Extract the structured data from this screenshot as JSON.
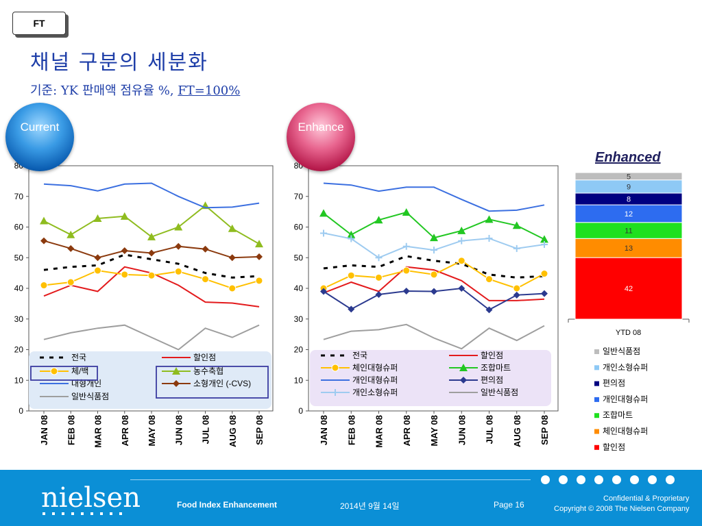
{
  "badge": "FT",
  "title": "채널 구분의 세분화",
  "subtitle_prefix": "기준: YK 판매액 점유율 %, ",
  "subtitle_suffix": "FT=100%",
  "bubble_current": "Current",
  "bubble_enhance": "Enhance",
  "chart_data": [
    {
      "type": "line",
      "name": "Current",
      "categories": [
        "JAN 08",
        "FEB 08",
        "MAR 08",
        "APR 08",
        "MAY 08",
        "JUN 08",
        "JUL 08",
        "AUG 08",
        "SEP 08"
      ],
      "ylim": [
        0,
        80
      ],
      "yticks": [
        0,
        10,
        20,
        30,
        40,
        50,
        60,
        70,
        80
      ],
      "grid": false,
      "series": [
        {
          "name": "전국",
          "color": "#000000",
          "style": "dashed",
          "marker": "none",
          "values": [
            46,
            47,
            47.5,
            51,
            49.5,
            48,
            45,
            43.5,
            44
          ]
        },
        {
          "name": "할인점",
          "color": "#e31a1c",
          "style": "solid",
          "marker": "none",
          "values": [
            37.5,
            41,
            39,
            47,
            45,
            41,
            35.5,
            35.2,
            34
          ]
        },
        {
          "name": "체/백",
          "color": "#ffc000",
          "style": "solid",
          "marker": "circle",
          "values": [
            41,
            42,
            45.8,
            44.5,
            44.2,
            45.5,
            43,
            40,
            42.5
          ]
        },
        {
          "name": "농수축협",
          "color": "#8fbc1f",
          "style": "solid",
          "marker": "triangle",
          "values": [
            62,
            57.5,
            62.8,
            63.5,
            56.8,
            60,
            67,
            59.5,
            54.5
          ]
        },
        {
          "name": "대형개인",
          "color": "#3b6fe0",
          "style": "solid",
          "marker": "none",
          "values": [
            74,
            73.5,
            71.8,
            74,
            74.3,
            70,
            66.3,
            66.5,
            67.8
          ]
        },
        {
          "name": "소형개인 (-CVS)",
          "color": "#8b3a0e",
          "style": "solid",
          "marker": "diamond",
          "values": [
            55.5,
            53,
            50,
            52.3,
            51.5,
            53.7,
            52.8,
            50,
            50.3
          ]
        },
        {
          "name": "일반식품점",
          "color": "#9e9e9e",
          "style": "solid",
          "marker": "none",
          "values": [
            23.3,
            25.5,
            27,
            28,
            24,
            20,
            27,
            24,
            28
          ]
        }
      ]
    },
    {
      "type": "line",
      "name": "Enhance",
      "categories": [
        "JAN 08",
        "FEB 08",
        "MAR 08",
        "APR 08",
        "MAY 08",
        "JUN 08",
        "JUL 08",
        "AUG 08",
        "SEP 08"
      ],
      "ylim": [
        0,
        80
      ],
      "yticks": [
        0,
        10,
        20,
        30,
        40,
        50,
        60,
        70,
        80
      ],
      "grid": false,
      "series": [
        {
          "name": "전국",
          "color": "#000000",
          "style": "dashed",
          "marker": "none",
          "values": [
            46.5,
            47.5,
            47,
            50.5,
            49,
            48,
            44.5,
            43.5,
            44
          ]
        },
        {
          "name": "할인점",
          "color": "#e31a1c",
          "style": "solid",
          "marker": "none",
          "values": [
            38.5,
            42,
            39,
            47,
            46,
            42.5,
            36,
            36,
            36.5
          ]
        },
        {
          "name": "체인대형슈퍼",
          "color": "#ffc000",
          "style": "solid",
          "marker": "circle",
          "values": [
            40,
            44.2,
            43.5,
            45.8,
            44.5,
            49,
            43,
            40,
            44.8
          ]
        },
        {
          "name": "조합마트",
          "color": "#22c722",
          "style": "solid",
          "marker": "triangle",
          "values": [
            64.5,
            57.5,
            62.3,
            64.8,
            56.5,
            58.8,
            62.5,
            60.5,
            56
          ]
        },
        {
          "name": "개인대형슈퍼",
          "color": "#3b6fe0",
          "style": "solid",
          "marker": "none",
          "values": [
            74.3,
            73.7,
            71.7,
            73,
            73,
            69,
            65.2,
            65.5,
            67.2
          ]
        },
        {
          "name": "편의점",
          "color": "#2b3a8f",
          "style": "solid",
          "marker": "diamond",
          "values": [
            39,
            33.2,
            38,
            39.1,
            39,
            40,
            33,
            37.8,
            38.3
          ]
        },
        {
          "name": "개인소형슈퍼",
          "color": "#9ecbf0",
          "style": "solid",
          "marker": "plus",
          "values": [
            58,
            56.2,
            50,
            53.7,
            52.5,
            55.5,
            56.3,
            53,
            54.3
          ]
        },
        {
          "name": "일반식품점",
          "color": "#9e9e9e",
          "style": "solid",
          "marker": "none",
          "values": [
            23.3,
            26,
            26.5,
            28.2,
            23.8,
            20.3,
            27,
            23,
            27.8
          ]
        }
      ]
    },
    {
      "type": "bar",
      "stacked": true,
      "title": "Enhanced",
      "categories": [
        "YTD 08"
      ],
      "series": [
        {
          "name": "할인점",
          "color": "#ff0000",
          "values": [
            42
          ]
        },
        {
          "name": "체인대형슈퍼",
          "color": "#ff8c00",
          "values": [
            13
          ]
        },
        {
          "name": "조합마트",
          "color": "#1fe01f",
          "values": [
            11
          ]
        },
        {
          "name": "개인대형슈퍼",
          "color": "#2d6cf0",
          "values": [
            12
          ]
        },
        {
          "name": "편의점",
          "color": "#000080",
          "values": [
            8
          ]
        },
        {
          "name": "개인소형슈퍼",
          "color": "#8ec9f5",
          "values": [
            9
          ]
        },
        {
          "name": "일반식품점",
          "color": "#bdbdbd",
          "values": [
            5
          ]
        }
      ],
      "legend_placement": "bottom"
    }
  ],
  "footer": {
    "logo": "nielsen",
    "project": "Food Index Enhancement",
    "date": "2014년 9월 14일",
    "page": "Page 16",
    "confidential": "Confidential & Proprietary",
    "copyright": "Copyright © 2008 The Nielsen Company"
  }
}
